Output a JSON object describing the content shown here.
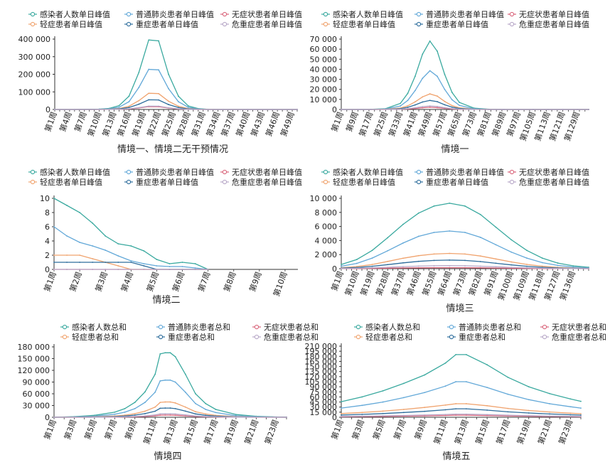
{
  "chart_data": [
    {
      "type": "line",
      "title": "情境一、情境二无干预情况",
      "x_tick_labels": [
        "第1周",
        "第4周",
        "第7周",
        "第10周",
        "第13周",
        "第16周",
        "第19周",
        "第22周",
        "第25周",
        "第28周",
        "第31周",
        "第34周",
        "第37周",
        "第40周",
        "第43周",
        "第46周",
        "第49周"
      ],
      "y_ticks": [
        "0",
        "100 000",
        "200 000",
        "300 000",
        "400 000"
      ],
      "ylim": [
        0,
        400000
      ],
      "x": [
        1,
        5,
        10,
        12,
        14,
        16,
        18,
        20,
        22,
        24,
        26,
        28,
        30,
        32,
        35,
        40,
        45,
        50
      ],
      "series": [
        {
          "name": "感染者人数单日峰值",
          "color": "#3aa99f",
          "values": [
            0,
            100,
            2000,
            6000,
            22000,
            75000,
            210000,
            395000,
            390000,
            200000,
            75000,
            20000,
            5000,
            1000,
            100,
            0,
            0,
            0
          ]
        },
        {
          "name": "普通肺炎患者单日峰值",
          "color": "#62a8d8",
          "values": [
            0,
            60,
            1200,
            3500,
            13000,
            44000,
            125000,
            228000,
            225000,
            118000,
            44000,
            12000,
            3000,
            600,
            60,
            0,
            0,
            0
          ]
        },
        {
          "name": "无症状患者单日峰值",
          "color": "#d9657b",
          "values": [
            0,
            5,
            80,
            250,
            900,
            3000,
            8500,
            16000,
            15800,
            8200,
            3000,
            850,
            200,
            40,
            5,
            0,
            0,
            0
          ]
        },
        {
          "name": "轻症患者单日峰值",
          "color": "#f0a36e",
          "values": [
            0,
            25,
            500,
            1400,
            5300,
            18000,
            50000,
            92000,
            90000,
            47000,
            18000,
            5000,
            1200,
            250,
            25,
            0,
            0,
            0
          ]
        },
        {
          "name": "重症患者单日峰值",
          "color": "#2d6d9c",
          "values": [
            0,
            15,
            300,
            850,
            3200,
            11000,
            30000,
            55000,
            54000,
            28000,
            11000,
            3000,
            700,
            150,
            15,
            0,
            0,
            0
          ]
        },
        {
          "name": "危重症患者单日峰值",
          "color": "#b8a8c8",
          "values": [
            0,
            5,
            110,
            300,
            1100,
            3800,
            10500,
            19000,
            18700,
            9800,
            3800,
            1000,
            250,
            50,
            5,
            0,
            0,
            0
          ]
        }
      ]
    },
    {
      "type": "line",
      "title": "情境一",
      "x_tick_labels": [
        "第1周",
        "第9周",
        "第17周",
        "第25周",
        "第33周",
        "第41周",
        "第49周",
        "第57周",
        "第65周",
        "第73周",
        "第81周",
        "第89周",
        "第97周",
        "第105周",
        "第113周",
        "第121周",
        "第129周"
      ],
      "y_ticks": [
        "0",
        "10 000",
        "20 000",
        "30 000",
        "40 000",
        "50 000",
        "60 000",
        "70 000"
      ],
      "ylim": [
        0,
        70000
      ],
      "x": [
        1,
        10,
        17,
        25,
        33,
        37,
        41,
        45,
        49,
        53,
        57,
        61,
        65,
        73,
        81,
        89,
        97,
        105,
        113,
        121,
        129,
        135
      ],
      "series": [
        {
          "name": "感染者人数单日峰值",
          "color": "#3aa99f",
          "values": [
            0,
            20,
            150,
            800,
            6000,
            16000,
            33000,
            55000,
            68000,
            58000,
            35000,
            17000,
            7000,
            1300,
            200,
            30,
            0,
            0,
            0,
            0,
            0,
            0
          ]
        },
        {
          "name": "普通肺炎患者单日峰值",
          "color": "#62a8d8",
          "values": [
            0,
            12,
            90,
            460,
            3400,
            9000,
            18800,
            31000,
            38500,
            33000,
            20000,
            9700,
            4000,
            740,
            115,
            17,
            0,
            0,
            0,
            0,
            0,
            0
          ]
        },
        {
          "name": "无症状患者单日峰值",
          "color": "#d9657b",
          "values": [
            0,
            1,
            5,
            25,
            200,
            500,
            1000,
            1700,
            2200,
            1800,
            1100,
            520,
            220,
            40,
            6,
            1,
            0,
            0,
            0,
            0,
            0,
            0
          ]
        },
        {
          "name": "轻症患者单日峰值",
          "color": "#f0a36e",
          "values": [
            0,
            5,
            35,
            180,
            1400,
            3600,
            7600,
            12500,
            15500,
            13300,
            8000,
            3900,
            1600,
            300,
            45,
            7,
            0,
            0,
            0,
            0,
            0,
            0
          ]
        },
        {
          "name": "重症患者单日峰值",
          "color": "#2d6d9c",
          "values": [
            0,
            3,
            20,
            100,
            800,
            2100,
            4500,
            7400,
            9000,
            7800,
            4700,
            2300,
            940,
            175,
            27,
            4,
            0,
            0,
            0,
            0,
            0,
            0
          ]
        },
        {
          "name": "危重症患者单日峰值",
          "color": "#b8a8c8",
          "values": [
            0,
            1,
            8,
            40,
            300,
            800,
            1700,
            2800,
            3500,
            3000,
            1800,
            880,
            360,
            65,
            10,
            2,
            0,
            0,
            0,
            0,
            0,
            0
          ]
        }
      ]
    },
    {
      "type": "line",
      "title": "情境二",
      "x_tick_labels": [
        "第1周",
        "第2周",
        "第3周",
        "第4周",
        "第5周",
        "第6周",
        "第7周",
        "第8周",
        "第9周",
        "第10周"
      ],
      "y_ticks": [
        "0",
        "2",
        "4",
        "6",
        "8",
        "10"
      ],
      "ylim": [
        0,
        10
      ],
      "x": [
        1,
        1.5,
        2,
        2.5,
        3,
        3.5,
        4,
        4.5,
        5,
        5.5,
        6,
        6.5,
        7
      ],
      "series": [
        {
          "name": "感染者人数单日峰值",
          "color": "#3aa99f",
          "values": [
            10,
            9,
            8,
            6.5,
            4.7,
            3.6,
            3.3,
            2.6,
            1.4,
            0.8,
            1.0,
            0.8,
            0
          ]
        },
        {
          "name": "普通肺炎患者单日峰值",
          "color": "#62a8d8",
          "values": [
            6,
            4.7,
            3.8,
            3.3,
            2.7,
            1.9,
            1.2,
            0.8,
            0.5,
            0.4,
            0.4,
            0.2,
            0
          ]
        },
        {
          "name": "无症状患者单日峰值",
          "color": "#d9657b",
          "values": [
            0,
            0,
            0,
            0,
            0,
            0,
            0,
            0,
            0,
            0,
            0,
            0,
            0
          ]
        },
        {
          "name": "轻症患者单日峰值",
          "color": "#f0a36e",
          "values": [
            2,
            2,
            2,
            1.5,
            1,
            0.5,
            0,
            0,
            0,
            0,
            0,
            0,
            0
          ]
        },
        {
          "name": "重症患者单日峰值",
          "color": "#2d6d9c",
          "values": [
            1,
            1,
            1,
            1,
            1,
            1,
            1,
            0.5,
            0,
            0,
            0,
            0,
            0
          ]
        },
        {
          "name": "危重症患者单日峰值",
          "color": "#b8a8c8",
          "values": [
            0,
            0,
            0,
            0,
            0,
            0,
            0,
            0,
            0,
            0,
            0,
            0,
            0
          ]
        }
      ]
    },
    {
      "type": "line",
      "title": "情境三",
      "x_tick_labels": [
        "第1周",
        "第10周",
        "第19周",
        "第28周",
        "第37周",
        "第46周",
        "第55周",
        "第64周",
        "第73周",
        "第82周",
        "第91周",
        "第100周",
        "第109周",
        "第118周",
        "第127周",
        "第136周"
      ],
      "y_ticks": [
        "0",
        "2 000",
        "4 000",
        "6 000",
        "8 000",
        "10 000"
      ],
      "ylim": [
        0,
        10000
      ],
      "x": [
        1,
        10,
        19,
        28,
        37,
        46,
        55,
        64,
        73,
        82,
        91,
        100,
        109,
        118,
        127,
        136,
        145
      ],
      "series": [
        {
          "name": "感染者人数单日峰值",
          "color": "#3aa99f",
          "values": [
            600,
            1300,
            2600,
            4400,
            6300,
            7900,
            8900,
            9300,
            8900,
            7700,
            5900,
            4100,
            2600,
            1500,
            800,
            400,
            200
          ]
        },
        {
          "name": "普通肺炎患者单日峰值",
          "color": "#62a8d8",
          "values": [
            350,
            750,
            1500,
            2550,
            3650,
            4600,
            5150,
            5350,
            5150,
            4450,
            3400,
            2350,
            1500,
            860,
            460,
            230,
            110
          ]
        },
        {
          "name": "无症状患者单日峰值",
          "color": "#d9657b",
          "values": [
            10,
            20,
            40,
            70,
            100,
            125,
            140,
            145,
            140,
            120,
            92,
            64,
            40,
            23,
            12,
            6,
            3
          ]
        },
        {
          "name": "轻症患者单日峰值",
          "color": "#f0a36e",
          "values": [
            140,
            300,
            600,
            1030,
            1480,
            1850,
            2080,
            2170,
            2080,
            1800,
            1380,
            960,
            610,
            350,
            190,
            95,
            45
          ]
        },
        {
          "name": "重症患者单日峰值",
          "color": "#2d6d9c",
          "values": [
            80,
            170,
            340,
            580,
            830,
            1040,
            1170,
            1220,
            1170,
            1010,
            770,
            540,
            340,
            200,
            105,
            52,
            25
          ]
        },
        {
          "name": "危重症患者单日峰值",
          "color": "#b8a8c8",
          "values": [
            30,
            60,
            120,
            200,
            290,
            360,
            410,
            430,
            410,
            355,
            270,
            190,
            120,
            70,
            37,
            18,
            9
          ]
        }
      ]
    },
    {
      "type": "line",
      "title": "情境四",
      "x_tick_labels": [
        "第1周",
        "第3周",
        "第5周",
        "第7周",
        "第9周",
        "第11周",
        "第13周",
        "第15周",
        "第17周",
        "第19周",
        "第21周",
        "第23周"
      ],
      "y_ticks": [
        "0",
        "30 000",
        "60 000",
        "90 000",
        "120 000",
        "150 000",
        "180 000"
      ],
      "ylim": [
        0,
        180000
      ],
      "x": [
        1,
        3,
        5,
        7,
        8,
        9,
        10,
        11,
        11.5,
        12,
        12.5,
        13,
        14,
        15,
        16,
        17,
        19,
        21,
        23,
        24
      ],
      "series": [
        {
          "name": "感染者人数总和",
          "color": "#3aa99f",
          "values": [
            0,
            1500,
            5000,
            13000,
            22000,
            38000,
            65000,
            110000,
            162000,
            165000,
            165000,
            155000,
            110000,
            60000,
            35000,
            20000,
            7000,
            2500,
            700,
            300
          ]
        },
        {
          "name": "普通肺炎患者总和",
          "color": "#62a8d8",
          "values": [
            0,
            900,
            3000,
            7600,
            13000,
            22000,
            38000,
            64000,
            93000,
            95000,
            95000,
            90000,
            64000,
            35000,
            20000,
            12000,
            4000,
            1400,
            400,
            170
          ]
        },
        {
          "name": "无症状患者总和",
          "color": "#d9657b",
          "values": [
            0,
            50,
            170,
            430,
            730,
            1250,
            2150,
            3600,
            5300,
            5400,
            5400,
            5100,
            3600,
            2000,
            1150,
            660,
            230,
            80,
            23,
            10
          ]
        },
        {
          "name": "轻症患者总和",
          "color": "#f0a36e",
          "values": [
            0,
            360,
            1200,
            3100,
            5300,
            9000,
            15500,
            26000,
            38000,
            39000,
            39000,
            36500,
            26000,
            14200,
            8300,
            4800,
            1650,
            600,
            170,
            70
          ]
        },
        {
          "name": "重症患者总和",
          "color": "#2d6d9c",
          "values": [
            0,
            220,
            720,
            1850,
            3100,
            5400,
            9200,
            15500,
            23000,
            23500,
            23500,
            22000,
            15600,
            8500,
            5000,
            2850,
            1000,
            350,
            100,
            43
          ]
        },
        {
          "name": "危重症患者总和",
          "color": "#b8a8c8",
          "values": [
            0,
            80,
            270,
            700,
            1200,
            2000,
            3500,
            5900,
            8600,
            8800,
            8800,
            8300,
            5900,
            3200,
            1900,
            1080,
            380,
            135,
            38,
            16
          ]
        }
      ]
    },
    {
      "type": "line",
      "title": "情境五",
      "x_tick_labels": [
        "第1周",
        "第3周",
        "第5周",
        "第7周",
        "第9周",
        "第11周",
        "第13周",
        "第15周",
        "第17周",
        "第19周",
        "第21周",
        "第23周"
      ],
      "y_ticks": [
        "0",
        "15 000",
        "30 000",
        "45 000",
        "60 000",
        "75 000",
        "90 000",
        "105 000",
        "120 000",
        "135 000",
        "150 000",
        "165 000",
        "180 000",
        "195 000",
        "210 000"
      ],
      "ylim": [
        0,
        210000
      ],
      "x": [
        1,
        3,
        5,
        7,
        9,
        11,
        12,
        13,
        15,
        17,
        19,
        21,
        23,
        24
      ],
      "series": [
        {
          "name": "感染者人数总和",
          "color": "#3aa99f",
          "values": [
            46000,
            60000,
            78000,
            100000,
            125000,
            160000,
            185000,
            185000,
            155000,
            118000,
            90000,
            70000,
            54000,
            47000
          ]
        },
        {
          "name": "普通肺炎患者总和",
          "color": "#62a8d8",
          "values": [
            27000,
            35000,
            45000,
            58000,
            73000,
            92000,
            105000,
            105000,
            88000,
            68000,
            52000,
            40000,
            31000,
            27000
          ]
        },
        {
          "name": "无症状患者总和",
          "color": "#d9657b",
          "values": [
            1500,
            2000,
            2600,
            3300,
            4100,
            5200,
            6000,
            6000,
            5000,
            3900,
            3000,
            2300,
            1800,
            1500
          ]
        },
        {
          "name": "轻症患者总和",
          "color": "#f0a36e",
          "values": [
            11000,
            14000,
            18000,
            23000,
            29000,
            36000,
            40000,
            40000,
            34000,
            26000,
            20000,
            15500,
            12000,
            10500
          ]
        },
        {
          "name": "重症患者总和",
          "color": "#2d6d9c",
          "values": [
            6500,
            8400,
            11000,
            14000,
            17500,
            22000,
            25000,
            25000,
            21000,
            16000,
            12500,
            9600,
            7400,
            6400
          ]
        },
        {
          "name": "危重症患者总和",
          "color": "#b8a8c8",
          "values": [
            2500,
            3200,
            4100,
            5200,
            6500,
            8200,
            9200,
            9200,
            7800,
            6000,
            4600,
            3500,
            2700,
            2400
          ]
        }
      ]
    }
  ]
}
